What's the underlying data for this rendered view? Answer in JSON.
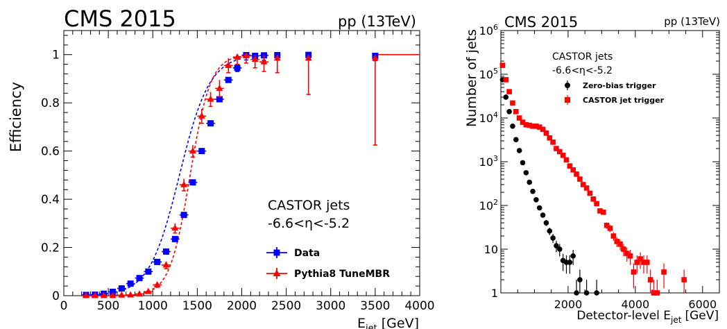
{
  "chart_data": [
    {
      "type": "scatter",
      "experiment": "CMS 2015",
      "collision": "pp (13TeV)",
      "xlabel": "E_jet [GeV]",
      "xlabel_main": "E",
      "xlabel_sub": "jet",
      "xlabel_unit": "[GeV]",
      "ylabel": "Efficiency",
      "xlim": [
        0,
        4000
      ],
      "ylim": [
        0,
        1.1
      ],
      "x_ticks": [
        0,
        500,
        1000,
        1500,
        2000,
        2500,
        3000,
        3500,
        4000
      ],
      "y_ticks": [
        0,
        0.2,
        0.4,
        0.6,
        0.8,
        1
      ],
      "y_tick_labels": [
        "0",
        "0.2",
        "0.4",
        "0.6",
        "0.8",
        "1"
      ],
      "grid": false,
      "annotation": [
        "CASTOR jets",
        "-6.6<η<-5.2"
      ],
      "legend_position": "bottom-right",
      "series": [
        {
          "name": "Data",
          "color": "#0000ff",
          "marker": "square",
          "x": [
            250,
            350,
            450,
            550,
            650,
            750,
            850,
            950,
            1050,
            1150,
            1250,
            1350,
            1450,
            1550,
            1650,
            1750,
            1850,
            1950,
            2050,
            2150,
            2250,
            2400,
            2750,
            3500
          ],
          "y": [
            0.003,
            0.004,
            0.008,
            0.016,
            0.03,
            0.05,
            0.073,
            0.1,
            0.14,
            0.183,
            0.235,
            0.335,
            0.47,
            0.6,
            0.715,
            0.815,
            0.895,
            0.945,
            0.998,
            0.995,
            0.997,
            0.998,
            0.999,
            0.995
          ],
          "err_low": [
            0,
            0,
            0,
            0,
            0,
            0,
            0,
            0,
            0,
            0,
            0,
            0,
            0.005,
            0.01,
            0.005,
            0.008,
            0.01,
            0.015,
            0.02,
            0.02,
            0.02,
            0.02,
            0.015,
            0.02
          ],
          "err_high": [
            0,
            0,
            0,
            0,
            0,
            0,
            0,
            0,
            0,
            0,
            0,
            0,
            0.005,
            0.01,
            0.005,
            0.008,
            0.01,
            0.01,
            0.002,
            0.005,
            0.003,
            0.002,
            0.001,
            0.005
          ],
          "fit_midpoint": 1300,
          "fit_width": 170
        },
        {
          "name": "Pythia8 TuneMBR",
          "color": "#ff0000",
          "marker": "triangle",
          "x": [
            250,
            350,
            450,
            550,
            650,
            750,
            850,
            950,
            1050,
            1150,
            1250,
            1350,
            1450,
            1550,
            1650,
            1750,
            1850,
            1950,
            2050,
            2150,
            2250,
            2400,
            2750,
            3500
          ],
          "y": [
            0.0,
            0.0,
            0.0,
            0.0,
            0.002,
            0.003,
            0.007,
            0.017,
            0.045,
            0.127,
            0.28,
            0.46,
            0.6,
            0.745,
            0.815,
            0.86,
            0.955,
            0.99,
            0.995,
            0.98,
            0.97,
            0.985,
            0.985,
            0.985
          ],
          "err_low": [
            0,
            0,
            0,
            0,
            0,
            0,
            0,
            0.005,
            0.01,
            0.015,
            0.02,
            0.025,
            0.025,
            0.03,
            0.03,
            0.035,
            0.03,
            0.03,
            0.03,
            0.035,
            0.04,
            0.06,
            0.15,
            0.36
          ],
          "err_high": [
            0,
            0,
            0,
            0,
            0,
            0,
            0,
            0.005,
            0.01,
            0.015,
            0.02,
            0.025,
            0.025,
            0.03,
            0.03,
            0.035,
            0.03,
            0.01,
            0.005,
            0.02,
            0.03,
            0.015,
            0.015,
            0.015
          ],
          "fit_midpoint": 1420,
          "fit_width": 115
        }
      ]
    },
    {
      "type": "scatter",
      "experiment": "CMS 2015",
      "collision": "pp (13TeV)",
      "xlabel": "Detector-level E_jet [GeV]",
      "xlabel_main": "Detector-level E",
      "xlabel_sub": "jet",
      "xlabel_unit": "[GeV]",
      "ylabel": "Number of jets",
      "log_y": true,
      "xlim": [
        0,
        6500
      ],
      "ylim": [
        1,
        1000000
      ],
      "x_ticks": [
        2000,
        4000,
        6000
      ],
      "y_ticks": [
        1,
        10,
        100,
        1000,
        10000,
        100000,
        1000000
      ],
      "y_tick_labels": [
        "1",
        "10",
        "10^2",
        "10^3",
        "10^4",
        "10^5",
        "10^6"
      ],
      "grid": false,
      "annotation": [
        "CASTOR jets",
        "-6.6<η<-5.2"
      ],
      "legend_position": "top-right",
      "series": [
        {
          "name": "Zero-bias trigger",
          "color": "#000000",
          "marker": "circle",
          "x": [
            50,
            150,
            250,
            350,
            450,
            550,
            650,
            750,
            850,
            950,
            1050,
            1150,
            1250,
            1350,
            1450,
            1550,
            1650,
            1750,
            1850,
            1950,
            2050,
            2150,
            2250,
            2350,
            2550,
            2850
          ],
          "y": [
            75000,
            30000,
            14000,
            6500,
            3200,
            1800,
            950,
            560,
            340,
            210,
            135,
            88,
            60,
            40,
            26,
            18,
            12,
            10,
            5.5,
            5.0,
            5.0,
            7.0,
            1.0,
            2.0,
            1.0,
            1.0
          ]
        },
        {
          "name": "CASTOR jet trigger",
          "color": "#ff0000",
          "marker": "square",
          "x": [
            50,
            150,
            250,
            350,
            450,
            550,
            650,
            750,
            850,
            950,
            1050,
            1150,
            1250,
            1350,
            1450,
            1550,
            1650,
            1750,
            1850,
            1950,
            2050,
            2150,
            2250,
            2350,
            2450,
            2550,
            2650,
            2750,
            2850,
            2950,
            3050,
            3150,
            3250,
            3350,
            3450,
            3550,
            3650,
            3750,
            3850,
            3950,
            4050,
            4150,
            4250,
            4350,
            4450,
            4550,
            4650,
            4850,
            5450
          ],
          "y": [
            160000,
            75000,
            40000,
            22000,
            14000,
            10000,
            8000,
            7000,
            6800,
            6500,
            6500,
            6200,
            5500,
            4500,
            3500,
            2800,
            2000,
            1700,
            1400,
            1100,
            800,
            650,
            520,
            400,
            300,
            250,
            190,
            140,
            110,
            75,
            70,
            35,
            30,
            20,
            15,
            13,
            10,
            8,
            7,
            3,
            5,
            6,
            5,
            5,
            2,
            1,
            1,
            3,
            2
          ]
        }
      ]
    }
  ]
}
